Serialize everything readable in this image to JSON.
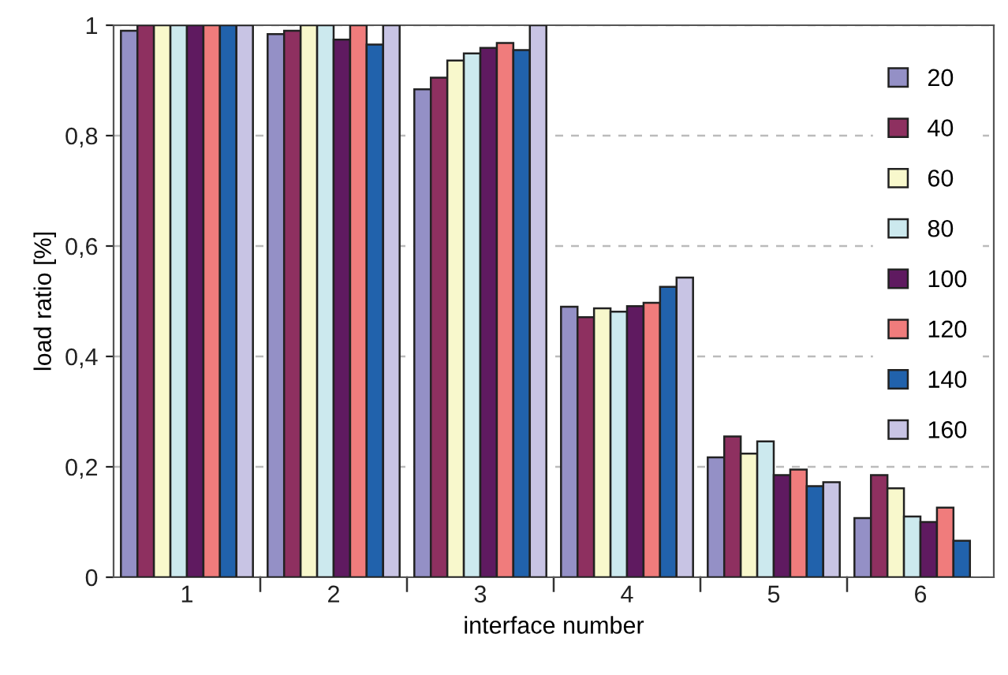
{
  "chart_data": {
    "type": "bar",
    "xlabel": "interface number",
    "ylabel": "load ratio [%]",
    "categories": [
      "1",
      "2",
      "3",
      "4",
      "5",
      "6"
    ],
    "series": [
      {
        "name": "20",
        "color": "#9490c6",
        "values": [
          0.99,
          0.984,
          0.884,
          0.49,
          0.217,
          0.107
        ]
      },
      {
        "name": "40",
        "color": "#8e3060",
        "values": [
          1.0,
          0.99,
          0.905,
          0.471,
          0.255,
          0.185
        ]
      },
      {
        "name": "60",
        "color": "#f8f8cc",
        "values": [
          1.0,
          1.0,
          0.936,
          0.487,
          0.224,
          0.161
        ]
      },
      {
        "name": "80",
        "color": "#cce9ee",
        "values": [
          1.0,
          1.0,
          0.949,
          0.481,
          0.246,
          0.11
        ]
      },
      {
        "name": "100",
        "color": "#5f1a60",
        "values": [
          1.0,
          0.974,
          0.959,
          0.491,
          0.185,
          0.1
        ]
      },
      {
        "name": "120",
        "color": "#f07c7c",
        "values": [
          1.0,
          1.0,
          0.968,
          0.497,
          0.195,
          0.126
        ]
      },
      {
        "name": "140",
        "color": "#2162ac",
        "values": [
          1.0,
          0.965,
          0.955,
          0.526,
          0.165,
          0.066
        ]
      },
      {
        "name": "160",
        "color": "#c8c4e4",
        "values": [
          1.0,
          1.0,
          1.0,
          0.543,
          0.172,
          null
        ]
      }
    ],
    "ylim": [
      0,
      1
    ],
    "yticks": [
      0,
      {
        "value": 0.2,
        "label": "0,2"
      },
      {
        "value": 0.4,
        "label": "0,4"
      },
      {
        "value": 0.6,
        "label": "0,6"
      },
      {
        "value": 0.8,
        "label": "0,8"
      },
      1
    ],
    "grid": "y",
    "legend": "right"
  }
}
